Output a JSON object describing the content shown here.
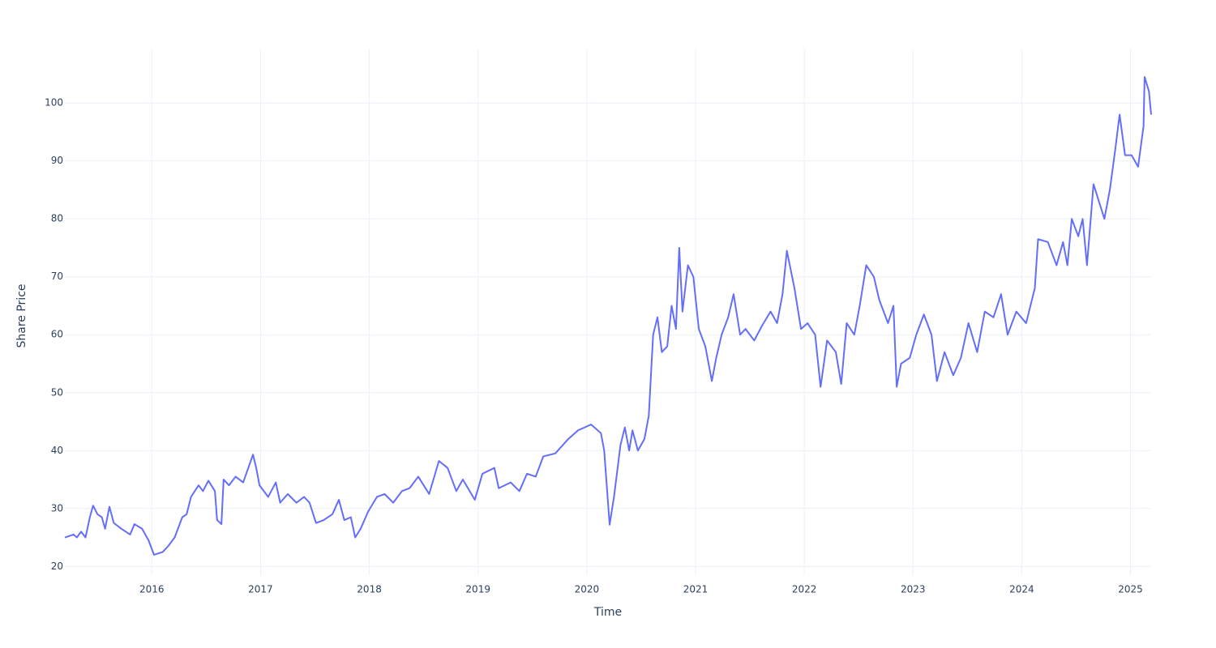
{
  "chart_data": {
    "type": "line",
    "x_label": "Time",
    "y_label": "Share Price",
    "x": [
      2015.2,
      2015.28,
      2015.31,
      2015.35,
      2015.39,
      2015.43,
      2015.46,
      2015.5,
      2015.54,
      2015.57,
      2015.61,
      2015.65,
      2015.72,
      2015.8,
      2015.84,
      2015.91,
      2015.97,
      2016.02,
      2016.1,
      2016.15,
      2016.21,
      2016.28,
      2016.32,
      2016.36,
      2016.43,
      2016.47,
      2016.52,
      2016.58,
      2016.6,
      2016.64,
      2016.66,
      2016.71,
      2016.77,
      2016.84,
      2016.93,
      2016.96,
      2016.99,
      2017.07,
      2017.14,
      2017.18,
      2017.25,
      2017.33,
      2017.4,
      2017.45,
      2017.51,
      2017.58,
      2017.66,
      2017.72,
      2017.77,
      2017.83,
      2017.87,
      2017.92,
      2017.99,
      2018.07,
      2018.14,
      2018.22,
      2018.3,
      2018.37,
      2018.45,
      2018.55,
      2018.64,
      2018.72,
      2018.8,
      2018.86,
      2018.97,
      2019.04,
      2019.15,
      2019.19,
      2019.3,
      2019.38,
      2019.45,
      2019.53,
      2019.6,
      2019.71,
      2019.83,
      2019.92,
      2020.04,
      2020.13,
      2020.16,
      2020.21,
      2020.25,
      2020.31,
      2020.35,
      2020.39,
      2020.42,
      2020.47,
      2020.53,
      2020.57,
      2020.61,
      2020.65,
      2020.69,
      2020.74,
      2020.78,
      2020.82,
      2020.85,
      2020.88,
      2020.93,
      2020.98,
      2021.03,
      2021.09,
      2021.15,
      2021.19,
      2021.24,
      2021.3,
      2021.35,
      2021.41,
      2021.46,
      2021.54,
      2021.61,
      2021.69,
      2021.75,
      2021.8,
      2021.84,
      2021.91,
      2021.97,
      2022.03,
      2022.1,
      2022.15,
      2022.21,
      2022.29,
      2022.34,
      2022.39,
      2022.46,
      2022.51,
      2022.57,
      2022.64,
      2022.69,
      2022.77,
      2022.82,
      2022.85,
      2022.89,
      2022.97,
      2023.03,
      2023.1,
      2023.17,
      2023.22,
      2023.29,
      2023.37,
      2023.44,
      2023.51,
      2023.59,
      2023.66,
      2023.74,
      2023.81,
      2023.87,
      2023.95,
      2024.04,
      2024.12,
      2024.15,
      2024.24,
      2024.32,
      2024.38,
      2024.42,
      2024.46,
      2024.52,
      2024.56,
      2024.6,
      2024.66,
      2024.71,
      2024.76,
      2024.81,
      2024.86,
      2024.9,
      2024.95,
      2025.01,
      2025.07,
      2025.12,
      2025.13,
      2025.17,
      2025.19
    ],
    "series": [
      {
        "color": "#636efa",
        "values": [
          25,
          25.5,
          25,
          26,
          25,
          28.5,
          30.5,
          29,
          28.5,
          26.5,
          30.3,
          27.5,
          26.5,
          25.5,
          27.3,
          26.5,
          24.5,
          22,
          22.5,
          23.5,
          25,
          28.5,
          29,
          32,
          34,
          33,
          34.8,
          33,
          28,
          27.3,
          35,
          34,
          35.5,
          34.5,
          39.3,
          37,
          34,
          32,
          34.5,
          31,
          32.5,
          31,
          32,
          31,
          27.5,
          28,
          29,
          31.5,
          28,
          28.5,
          25,
          26.5,
          29.5,
          32,
          32.5,
          31,
          33,
          33.5,
          35.5,
          32.5,
          38.2,
          37,
          33,
          35,
          31.5,
          36,
          37,
          33.5,
          34.5,
          33,
          36,
          35.5,
          39,
          39.5,
          42,
          43.5,
          44.5,
          43,
          40,
          27.2,
          32,
          41,
          44,
          40,
          43.5,
          40,
          42,
          46,
          60,
          63,
          57,
          58,
          65,
          61,
          75,
          64,
          72,
          70,
          61,
          58,
          52,
          56,
          60,
          63,
          67,
          60,
          61,
          59,
          61.5,
          64,
          62,
          67,
          74.5,
          68,
          61,
          62,
          60,
          51,
          59,
          57,
          51.5,
          62,
          60,
          65,
          72,
          70,
          66,
          62,
          65,
          51,
          55,
          56,
          60,
          63.5,
          60,
          52,
          57,
          53,
          56,
          62,
          57,
          64,
          63,
          67,
          60,
          64,
          62,
          68,
          76.5,
          76,
          72,
          76,
          72,
          80,
          77,
          80,
          72,
          86,
          83,
          80,
          85,
          92,
          98,
          91,
          91,
          89,
          96,
          104.5,
          102,
          98
        ]
      }
    ],
    "xlim": [
      2015.2,
      2025.19
    ],
    "ylim": [
      18.5,
      109.4
    ],
    "xticks": [
      2016,
      2017,
      2018,
      2019,
      2020,
      2021,
      2022,
      2023,
      2024,
      2025
    ],
    "yticks": [
      20,
      30,
      40,
      50,
      60,
      70,
      80,
      90,
      100
    ],
    "grid": true
  }
}
